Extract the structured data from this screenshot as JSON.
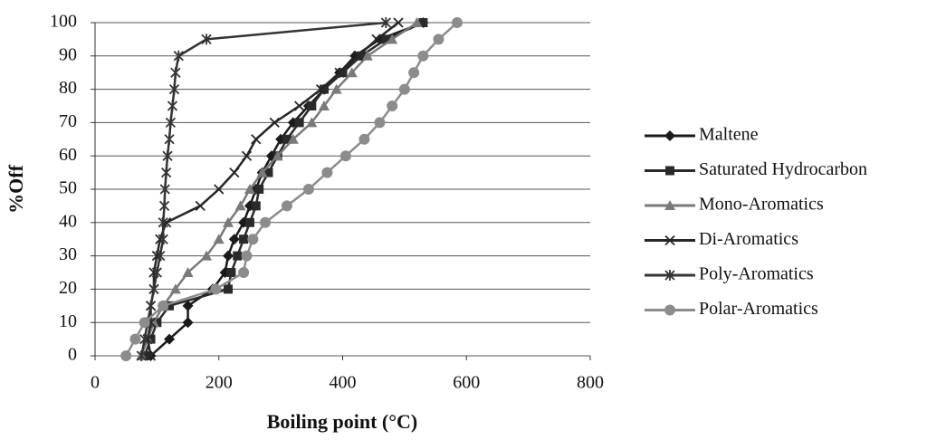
{
  "chart_data": {
    "type": "line",
    "x_label": "Boiling point (°C)",
    "y_label": "%Off",
    "xlim": [
      0,
      800
    ],
    "xticks": [
      0,
      200,
      400,
      600,
      800
    ],
    "ylim": [
      0,
      100
    ],
    "yticks": [
      0,
      10,
      20,
      30,
      40,
      50,
      60,
      70,
      80,
      90,
      100
    ],
    "grid": true,
    "legend": "right",
    "series": [
      {
        "name": "Maltene",
        "color": "#1a1a1a",
        "marker": "diamond",
        "x": [
          90,
          120,
          150,
          150,
          190,
          210,
          215,
          225,
          240,
          250,
          260,
          270,
          285,
          300,
          320,
          345,
          370,
          395,
          420,
          460,
          530
        ],
        "values": [
          0,
          5,
          10,
          15,
          20,
          25,
          30,
          35,
          40,
          45,
          50,
          55,
          60,
          65,
          70,
          75,
          80,
          85,
          90,
          95,
          100
        ]
      },
      {
        "name": "Saturated Hydrocarbon",
        "color": "#2a2a2a",
        "marker": "square",
        "x": [
          80,
          90,
          100,
          120,
          215,
          220,
          230,
          240,
          250,
          260,
          265,
          280,
          295,
          310,
          330,
          350,
          370,
          400,
          430,
          470,
          530
        ],
        "values": [
          0,
          5,
          10,
          15,
          20,
          25,
          30,
          35,
          40,
          45,
          50,
          55,
          60,
          65,
          70,
          75,
          80,
          85,
          90,
          95,
          100
        ]
      },
      {
        "name": "Mono-Aromatics",
        "color": "#7a7a7a",
        "marker": "triangle",
        "x": [
          75,
          85,
          95,
          110,
          130,
          150,
          180,
          200,
          215,
          235,
          250,
          270,
          295,
          320,
          350,
          370,
          390,
          415,
          440,
          480,
          520
        ],
        "values": [
          0,
          5,
          10,
          15,
          20,
          25,
          30,
          35,
          40,
          45,
          50,
          55,
          60,
          65,
          70,
          75,
          80,
          85,
          90,
          95,
          100
        ]
      },
      {
        "name": "Di-Aromatics",
        "color": "#262626",
        "marker": "x",
        "x": [
          90,
          85,
          90,
          90,
          95,
          95,
          100,
          105,
          115,
          170,
          200,
          225,
          245,
          260,
          290,
          330,
          365,
          395,
          425,
          455,
          490
        ],
        "values": [
          0,
          5,
          10,
          15,
          20,
          25,
          30,
          35,
          40,
          45,
          50,
          55,
          60,
          65,
          70,
          75,
          80,
          85,
          90,
          95,
          100
        ]
      },
      {
        "name": "Poly-Aromatics",
        "color": "#333333",
        "marker": "asterisk",
        "x": [
          75,
          80,
          85,
          90,
          95,
          100,
          105,
          110,
          110,
          112,
          113,
          115,
          117,
          120,
          122,
          125,
          128,
          130,
          135,
          180,
          470
        ],
        "values": [
          0,
          5,
          10,
          15,
          20,
          25,
          30,
          35,
          40,
          45,
          50,
          55,
          60,
          65,
          70,
          75,
          80,
          85,
          90,
          95,
          100
        ]
      },
      {
        "name": "Polar-Aromatics",
        "color": "#8c8c8c",
        "marker": "circle",
        "x": [
          50,
          65,
          80,
          110,
          195,
          240,
          245,
          255,
          275,
          310,
          345,
          375,
          405,
          435,
          460,
          480,
          500,
          515,
          530,
          555,
          585
        ],
        "values": [
          0,
          5,
          10,
          15,
          20,
          25,
          30,
          35,
          40,
          45,
          50,
          55,
          60,
          65,
          70,
          75,
          80,
          85,
          90,
          95,
          100
        ]
      }
    ]
  }
}
